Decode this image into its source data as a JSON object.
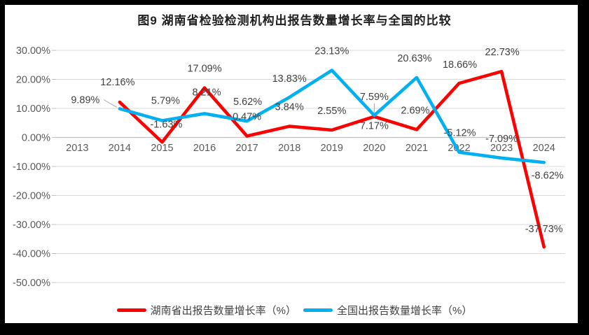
{
  "chart_data": {
    "type": "line",
    "title": "图9 湖南省检验检测机构出报告数量增长率与全国的比较",
    "categories": [
      "2013",
      "2014",
      "2015",
      "2016",
      "2017",
      "2018",
      "2019",
      "2020",
      "2021",
      "2022",
      "2023",
      "2024"
    ],
    "series": [
      {
        "name": "湖南省出报告数量增长率（%）",
        "color": "#FF0000",
        "values": [
          null,
          12.16,
          -1.63,
          17.09,
          0.47,
          3.84,
          2.55,
          7.17,
          2.69,
          18.66,
          22.73,
          -37.73
        ],
        "labels": [
          null,
          "12.16%",
          "-1.63%",
          "17.09%",
          "0.47%",
          "3.84%",
          "2.55%",
          "7.17%",
          "2.69%",
          "18.66%",
          "22.73%",
          "-37.73%"
        ]
      },
      {
        "name": "全国出报告数量增长率（%）",
        "color": "#00B0F0",
        "values": [
          null,
          9.89,
          5.79,
          8.21,
          5.62,
          13.83,
          23.13,
          7.59,
          20.63,
          -5.12,
          -7.09,
          -8.62
        ],
        "labels": [
          null,
          "9.89%",
          "5.79%",
          "8.21%",
          "5.62%",
          "13.83%",
          "23.13%",
          "7.59%",
          "20.63%",
          "-5.12%",
          "-7.09%",
          "-8.62%"
        ]
      }
    ],
    "y_axis": {
      "tick_labels": [
        "30.00%",
        "20.00%",
        "10.00%",
        "0.00%",
        "-10.00%",
        "-20.00%",
        "-30.00%",
        "-40.00%",
        "-50.00%"
      ],
      "tick_values": [
        30,
        20,
        10,
        0,
        -10,
        -20,
        -30,
        -40,
        -50
      ],
      "min": -50,
      "max": 30
    },
    "grid": true,
    "legend_position": "bottom",
    "colors": {
      "gridline": "#D9D9D9",
      "zero_axis": "#BFBFBF",
      "axis_label": "#595959",
      "data_label": "#404040",
      "leader_line": "#A6A6A6",
      "title": "#1F1F1F"
    }
  }
}
